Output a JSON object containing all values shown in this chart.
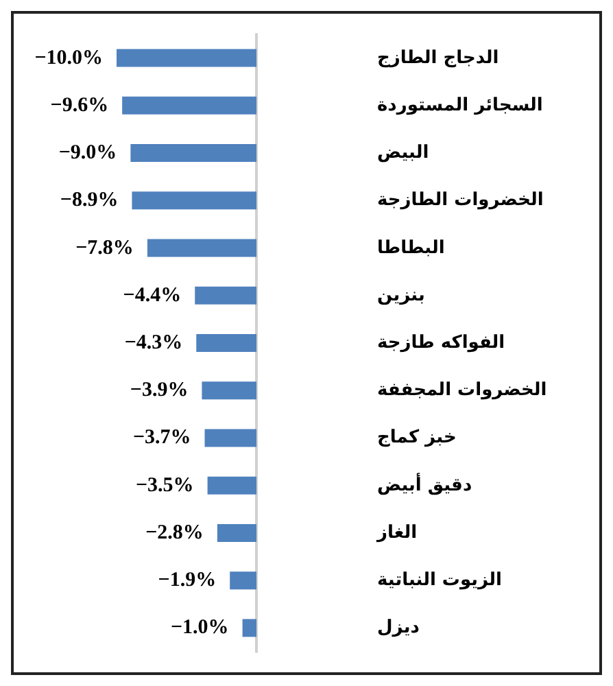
{
  "chart_data": {
    "type": "bar",
    "orientation": "horizontal",
    "categories": [
      "الدجاج الطازج",
      "السجائر المستوردة",
      "البيض",
      "الخضروات الطازجة",
      "البطاطا",
      "بنزين",
      "الفواكه طازجة",
      "الخضروات المجففة",
      "خبز كماج",
      "دقيق أبيض",
      "الغاز",
      "الزيوت النباتية",
      "ديزل"
    ],
    "values": [
      -10.0,
      -9.6,
      -9.0,
      -8.9,
      -7.8,
      -4.4,
      -4.3,
      -3.9,
      -3.7,
      -3.5,
      -2.8,
      -1.9,
      -1.0
    ],
    "value_labels": [
      "−10.0%",
      "−9.6%",
      "−9.0%",
      "−8.9%",
      "−7.8%",
      "−4.4%",
      "−4.3%",
      "−3.9%",
      "−3.7%",
      "−3.5%",
      "−2.8%",
      "−1.9%",
      "−1.0%"
    ],
    "color": "#4f81bd",
    "grid": false,
    "tick_labels": "y"
  }
}
